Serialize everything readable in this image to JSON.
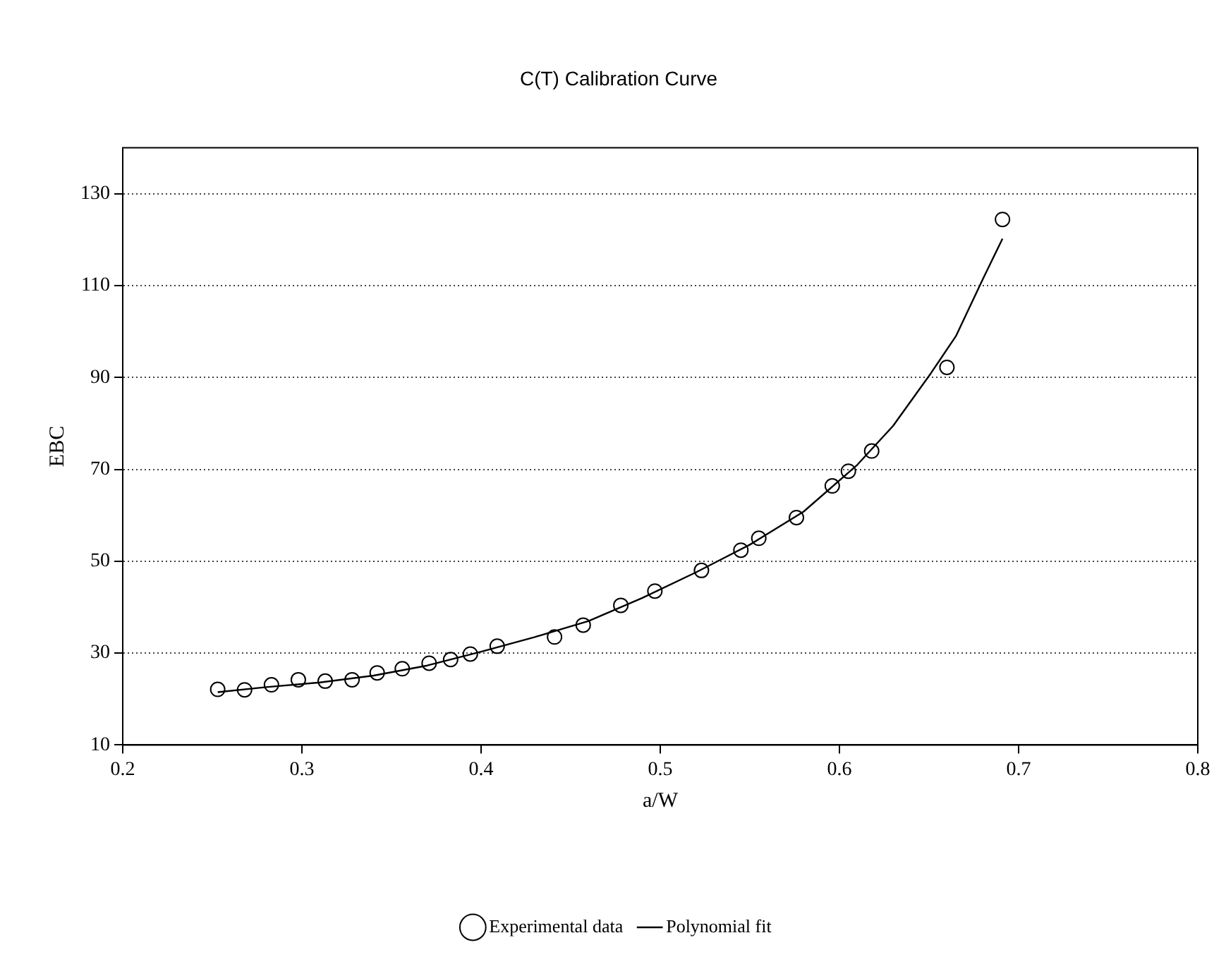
{
  "chart_data": {
    "type": "scatter",
    "title": "C(T) Calibration Curve",
    "xlabel": "a/W",
    "ylabel": "EBC",
    "xlim": [
      0.2,
      0.8
    ],
    "xticks": [
      0.2,
      0.3,
      0.4,
      0.5,
      0.6,
      0.7,
      0.8
    ],
    "ylim": [
      10,
      140
    ],
    "yticks": [
      10,
      30,
      50,
      70,
      90,
      110,
      130
    ],
    "grid": "y",
    "legend": "bottom",
    "series": [
      {
        "name": "Experimental data",
        "marker": "circle",
        "color": "#000000",
        "x": [
          0.253,
          0.268,
          0.283,
          0.298,
          0.313,
          0.328,
          0.342,
          0.356,
          0.371,
          0.383,
          0.394,
          0.409,
          0.441,
          0.457,
          0.478,
          0.497,
          0.523,
          0.545,
          0.555,
          0.576,
          0.596,
          0.605,
          0.618,
          0.66,
          0.691
        ],
        "values": [
          22.1,
          22.0,
          23.1,
          24.2,
          23.9,
          24.2,
          25.7,
          26.6,
          27.8,
          28.6,
          29.8,
          31.5,
          33.5,
          36.1,
          40.4,
          43.5,
          48.0,
          52.4,
          55.0,
          59.5,
          66.4,
          69.6,
          74.0,
          92.2,
          124.4
        ]
      },
      {
        "name": "Polynomial fit",
        "type": "line",
        "marker": "none",
        "color": "#000000",
        "line_style": "solid",
        "x": [
          0.253,
          0.28,
          0.31,
          0.34,
          0.37,
          0.4,
          0.43,
          0.46,
          0.49,
          0.52,
          0.55,
          0.58,
          0.61,
          0.63,
          0.651,
          0.665,
          0.68,
          0.691
        ],
        "values": [
          21.5,
          22.6,
          23.6,
          25.1,
          27.3,
          30.3,
          33.5,
          37.0,
          42.0,
          47.6,
          53.6,
          60.8,
          71.0,
          79.5,
          90.9,
          99.0,
          111.4,
          120.2
        ]
      }
    ]
  }
}
